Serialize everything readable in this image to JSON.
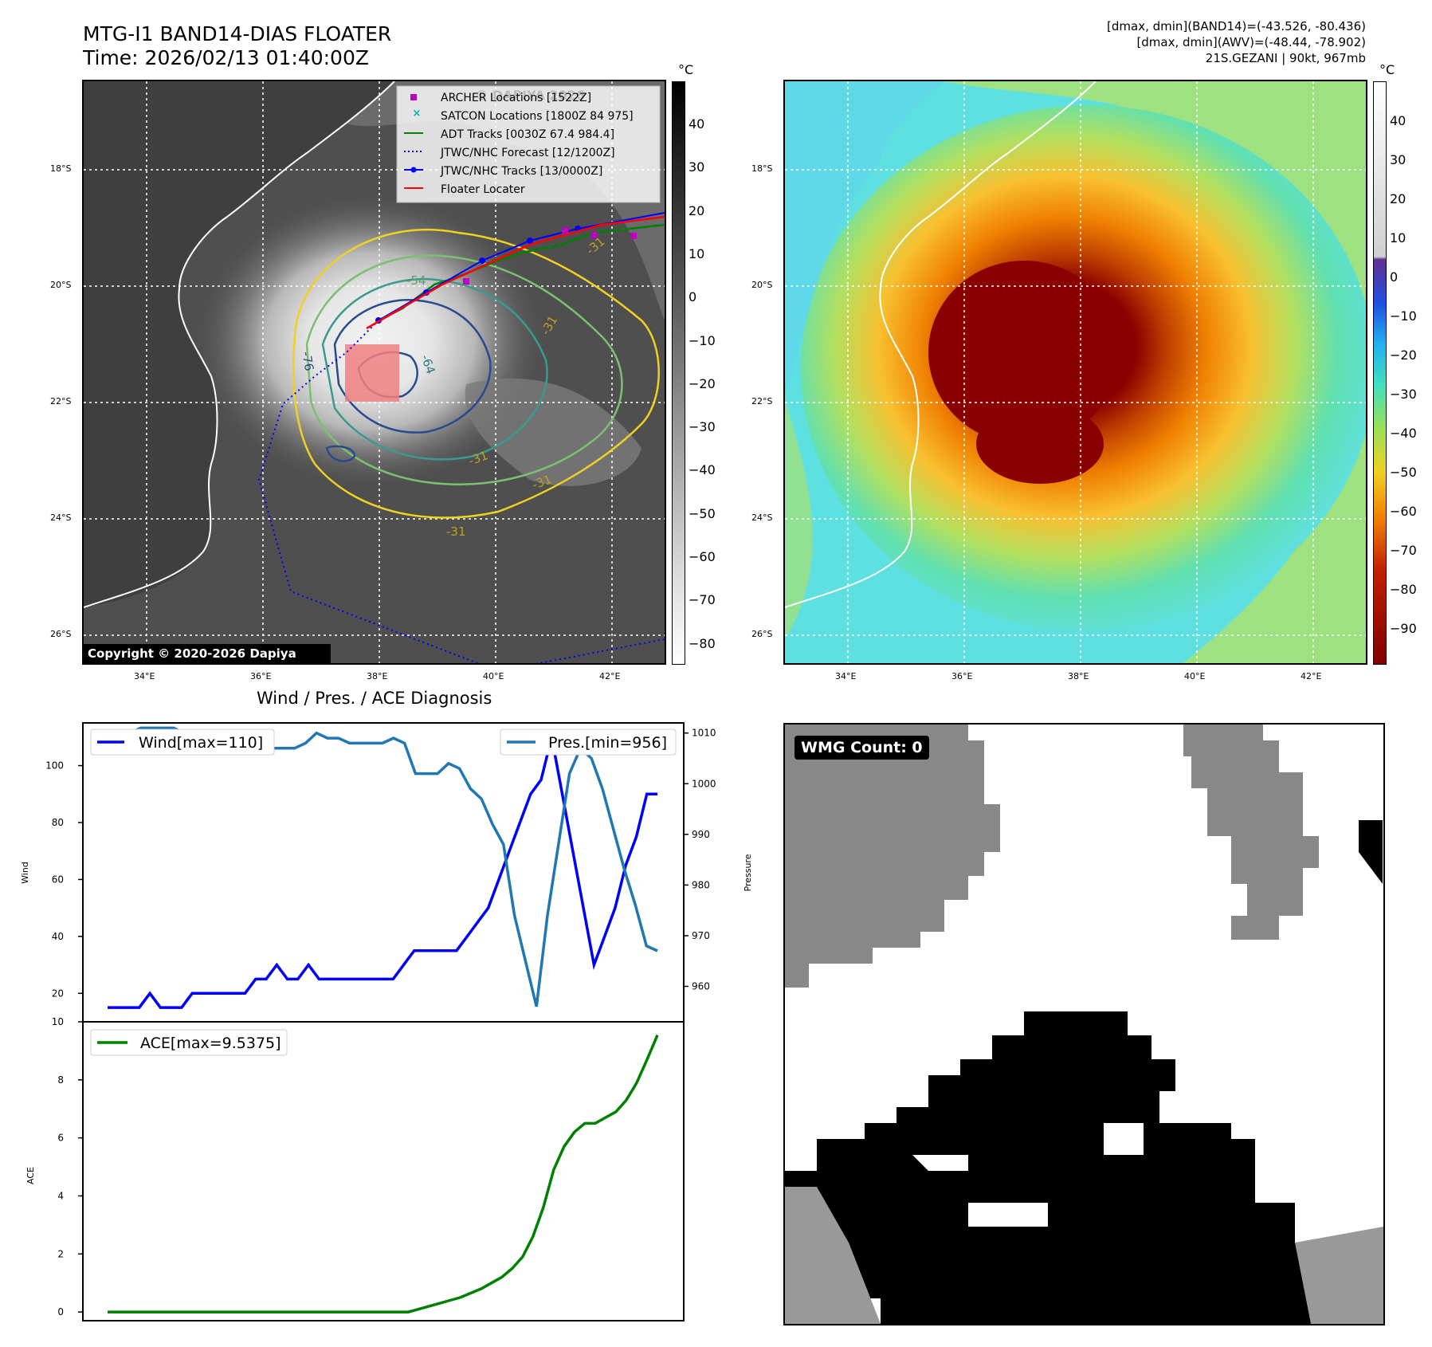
{
  "header": {
    "title_line1": "MTG-I1 BAND14-DIAS FLOATER",
    "title_line2": "Time: 2026/02/13 01:40:00Z",
    "info_line1": "[dmax, dmin](BAND14)=(-43.526, -80.436)",
    "info_line2": "[dmax, dmin](AWV)=(-48.44, -78.902)",
    "info_line3": "21S.GEZANI | 90kt, 967mb"
  },
  "map": {
    "lat_ticks": [
      "18°S",
      "20°S",
      "22°S",
      "24°S",
      "26°S"
    ],
    "lon_ticks": [
      "34°E",
      "36°E",
      "38°E",
      "40°E",
      "42°E"
    ],
    "copyright": "Copyright © 2020-2026 Dapiya",
    "watermark": "© DAPIYA 2026",
    "contour_labels": [
      "-54",
      "-76",
      "-64",
      "-31",
      "-31",
      "-31",
      "-31",
      "-31"
    ],
    "legend": [
      {
        "label": "ARCHER Locations [1522Z]",
        "color": "#c000c0",
        "marker": "square"
      },
      {
        "label": "SATCON Locations [1800Z 84 975]",
        "color": "#00b0b0",
        "marker": "x"
      },
      {
        "label": "ADT Tracks [0030Z 67.4 984.4]",
        "color": "#008000",
        "marker": "line"
      },
      {
        "label": "JTWC/NHC Forecast [12/1200Z]",
        "color": "#0000ff",
        "marker": "dotted"
      },
      {
        "label": "JTWC/NHC Tracks [13/0000Z]",
        "color": "#0000ff",
        "marker": "line-dot"
      },
      {
        "label": "Floater Locater",
        "color": "#ff0000",
        "marker": "line"
      }
    ]
  },
  "colorbar_gray": {
    "unit": "°C",
    "ticks": [
      "40",
      "30",
      "20",
      "10",
      "0",
      "−10",
      "−20",
      "−30",
      "−40",
      "−50",
      "−60",
      "−70",
      "−80"
    ]
  },
  "colorbar_color": {
    "unit": "°C",
    "ticks": [
      "40",
      "30",
      "20",
      "10",
      "0",
      "−10",
      "−20",
      "−30",
      "−40",
      "−50",
      "−60",
      "−70",
      "−80",
      "−90"
    ]
  },
  "wmg": {
    "label": "WMG Count: 0"
  },
  "chart_data": [
    {
      "type": "line",
      "title": "Wind / Pres. / ACE Diagnosis",
      "ylabel": "Wind",
      "y2label": "Pressure",
      "ylim": [
        10,
        115
      ],
      "y2lim": [
        953,
        1012
      ],
      "yticks": [
        "20",
        "40",
        "60",
        "80",
        "100"
      ],
      "y2ticks": [
        "960",
        "970",
        "980",
        "990",
        "1000",
        "1010"
      ],
      "series": [
        {
          "name": "Wind[max=110]",
          "color": "#0000ff",
          "values": [
            15,
            15,
            15,
            15,
            20,
            15,
            15,
            15,
            20,
            20,
            20,
            20,
            20,
            20,
            25,
            25,
            30,
            25,
            25,
            30,
            25,
            25,
            25,
            25,
            25,
            25,
            25,
            25,
            30,
            35,
            35,
            35,
            35,
            35,
            40,
            45,
            50,
            60,
            70,
            80,
            90,
            95,
            110,
            90,
            70,
            50,
            30,
            40,
            50,
            65,
            75,
            90,
            90
          ]
        },
        {
          "name": "Pres.[min=956]",
          "color": "#1f77b4",
          "values": [
            1010,
            1010,
            1010,
            1011,
            1011,
            1011,
            1011,
            1010,
            1009,
            1009,
            1009,
            1008,
            1008,
            1008,
            1009,
            1007,
            1007,
            1007,
            1008,
            1010,
            1009,
            1009,
            1008,
            1008,
            1008,
            1008,
            1009,
            1008,
            1002,
            1002,
            1002,
            1004,
            1003,
            999,
            997,
            992,
            988,
            974,
            965,
            956,
            974,
            988,
            1002,
            1007,
            1005,
            999,
            991,
            983,
            976,
            968,
            967
          ]
        }
      ]
    },
    {
      "type": "line",
      "ylabel": "ACE",
      "ylim": [
        -0.3,
        10
      ],
      "yticks": [
        "0",
        "2",
        "4",
        "6",
        "8",
        "10"
      ],
      "series": [
        {
          "name": "ACE[max=9.5375]",
          "color": "#008000",
          "values": [
            0,
            0,
            0,
            0,
            0,
            0,
            0,
            0,
            0,
            0,
            0,
            0,
            0,
            0,
            0,
            0,
            0,
            0,
            0,
            0,
            0,
            0,
            0,
            0,
            0,
            0,
            0,
            0,
            0,
            0,
            0.1,
            0.2,
            0.3,
            0.4,
            0.5,
            0.65,
            0.8,
            1.0,
            1.2,
            1.5,
            1.9,
            2.6,
            3.6,
            4.9,
            5.7,
            6.2,
            6.5,
            6.5,
            6.7,
            6.9,
            7.3,
            7.9,
            8.7,
            9.54
          ]
        }
      ]
    }
  ]
}
